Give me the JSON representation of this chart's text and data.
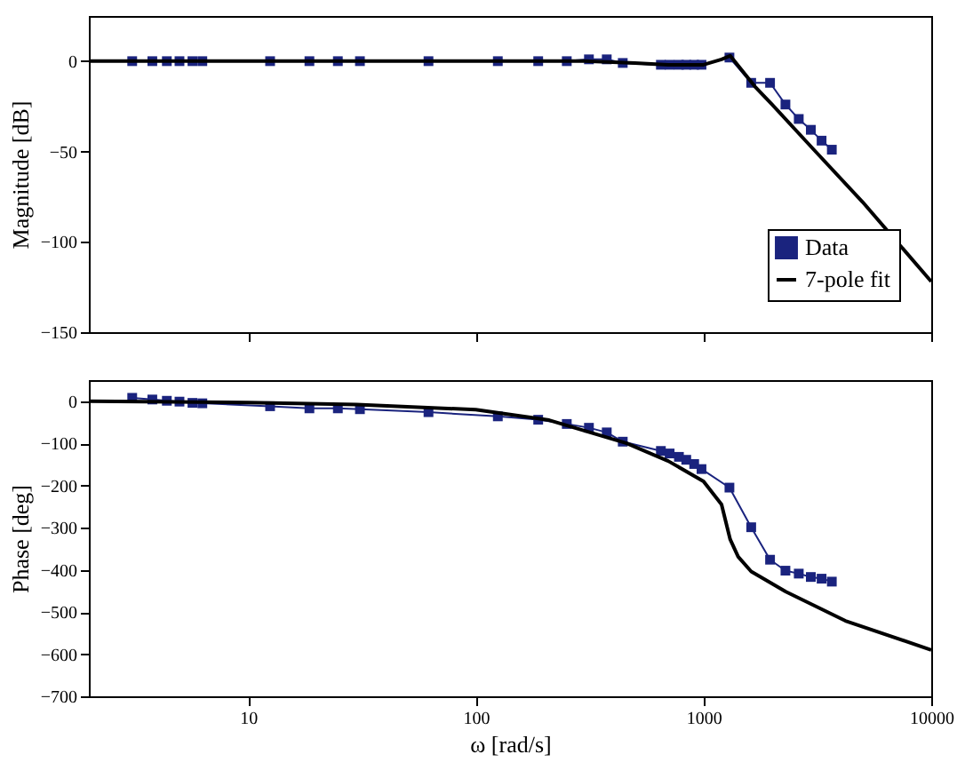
{
  "chart_data": [
    {
      "type": "line",
      "ylabel": "Magnitude [dB]",
      "log": "x",
      "xlim": [
        2,
        10000
      ],
      "xticks": [
        10,
        100,
        1000,
        10000
      ],
      "ylim": [
        -150,
        25
      ],
      "yticks": [
        -150,
        -100,
        -50,
        0
      ],
      "tick_labels": "y",
      "legend": "bottom right",
      "series": [
        {
          "name": "Data",
          "color": "#1a237e",
          "marker": "square",
          "x": [
            3.1,
            3.8,
            4.4,
            5.0,
            5.7,
            6.3,
            12.5,
            18.6,
            24.8,
            31,
            62,
            125,
            188,
            251,
            314,
            376,
            442,
            650,
            710,
            780,
            840,
            910,
            980,
            1300,
            1620,
            1960,
            2290,
            2620,
            2960,
            3300,
            3660
          ],
          "values": [
            0,
            0,
            0,
            0,
            0,
            0,
            0,
            0,
            0,
            0,
            0,
            0,
            0,
            0,
            1,
            1,
            -1,
            -2,
            -2,
            -2,
            -2,
            -2,
            -2,
            2,
            -12,
            -12,
            -24,
            -32,
            -38,
            -44,
            -49
          ]
        },
        {
          "name": "7-pole fit",
          "color": "#000000",
          "marker": "none",
          "x": [
            2,
            100,
            300,
            500,
            700,
            1000,
            1200,
            1310,
            1680,
            2000,
            3000,
            5000,
            10000
          ],
          "values": [
            0,
            0,
            0,
            -1,
            -2,
            -2,
            1,
            3,
            -14,
            -24,
            -48,
            -78,
            -122
          ]
        }
      ]
    },
    {
      "type": "line",
      "xlabel": "ω [rad/s]",
      "ylabel": "Phase [deg]",
      "log": "x",
      "xlim": [
        2,
        10000
      ],
      "xticks": [
        10,
        100,
        1000,
        10000
      ],
      "ylim": [
        -700,
        50
      ],
      "yticks": [
        -700,
        -600,
        -500,
        -400,
        -300,
        -200,
        -100,
        0
      ],
      "legend": false,
      "series": [
        {
          "color": "#1a237e",
          "marker": "square",
          "x": [
            3.1,
            3.8,
            4.4,
            5.0,
            5.7,
            6.3,
            12.5,
            18.6,
            24.8,
            31,
            62,
            125,
            188,
            251,
            314,
            376,
            442,
            650,
            710,
            780,
            840,
            910,
            980,
            1300,
            1620,
            1960,
            2290,
            2620,
            2960,
            3300,
            3660
          ],
          "values": [
            8,
            4,
            1,
            -1,
            -4,
            -5,
            -12,
            -17,
            -17,
            -19,
            -26,
            -36,
            -44,
            -54,
            -63,
            -74,
            -96,
            -118,
            -124,
            -132,
            -139,
            -149,
            -161,
            -205,
            -299,
            -376,
            -402,
            -409,
            -417,
            -421,
            -428
          ]
        },
        {
          "color": "#000000",
          "marker": "none",
          "x": [
            2,
            10,
            30,
            100,
            210,
            460,
            700,
            1000,
            1200,
            1310,
            1420,
            1620,
            2300,
            4200,
            10000
          ],
          "values": [
            0,
            -3,
            -8,
            -20,
            -45,
            -100,
            -142,
            -190,
            -245,
            -328,
            -369,
            -404,
            -452,
            -521,
            -590
          ]
        }
      ]
    }
  ]
}
